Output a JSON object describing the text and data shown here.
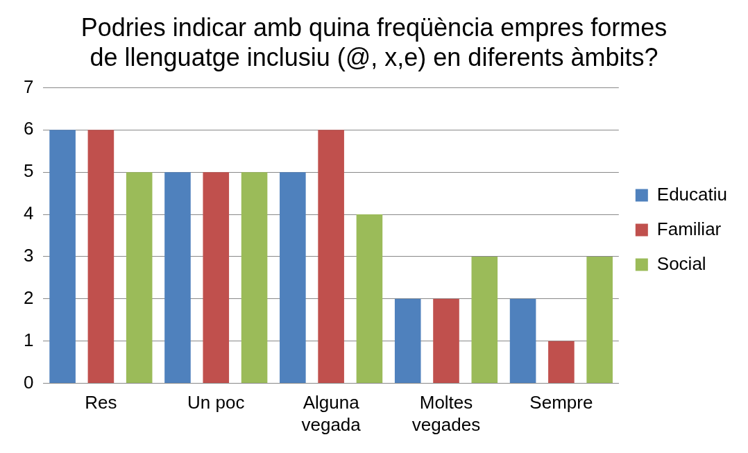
{
  "chart_data": {
    "type": "bar",
    "title": "Podries indicar amb quina freqüència empres formes de llenguatge inclusiu (@, x,e) en diferents àmbits?",
    "categories": [
      "Res",
      "Un poc",
      "Alguna vegada",
      "Moltes vegades",
      "Sempre"
    ],
    "series": [
      {
        "name": "Educatiu",
        "color": "#4f81bd",
        "values": [
          6,
          5,
          5,
          2,
          2
        ]
      },
      {
        "name": "Familiar",
        "color": "#c0504d",
        "values": [
          6,
          5,
          6,
          2,
          1
        ]
      },
      {
        "name": "Social",
        "color": "#9bbb59",
        "values": [
          5,
          5,
          4,
          3,
          3
        ]
      }
    ],
    "ylim": [
      0,
      7
    ],
    "yticks": [
      0,
      1,
      2,
      3,
      4,
      5,
      6,
      7
    ],
    "grid": "y",
    "legend": "right"
  }
}
